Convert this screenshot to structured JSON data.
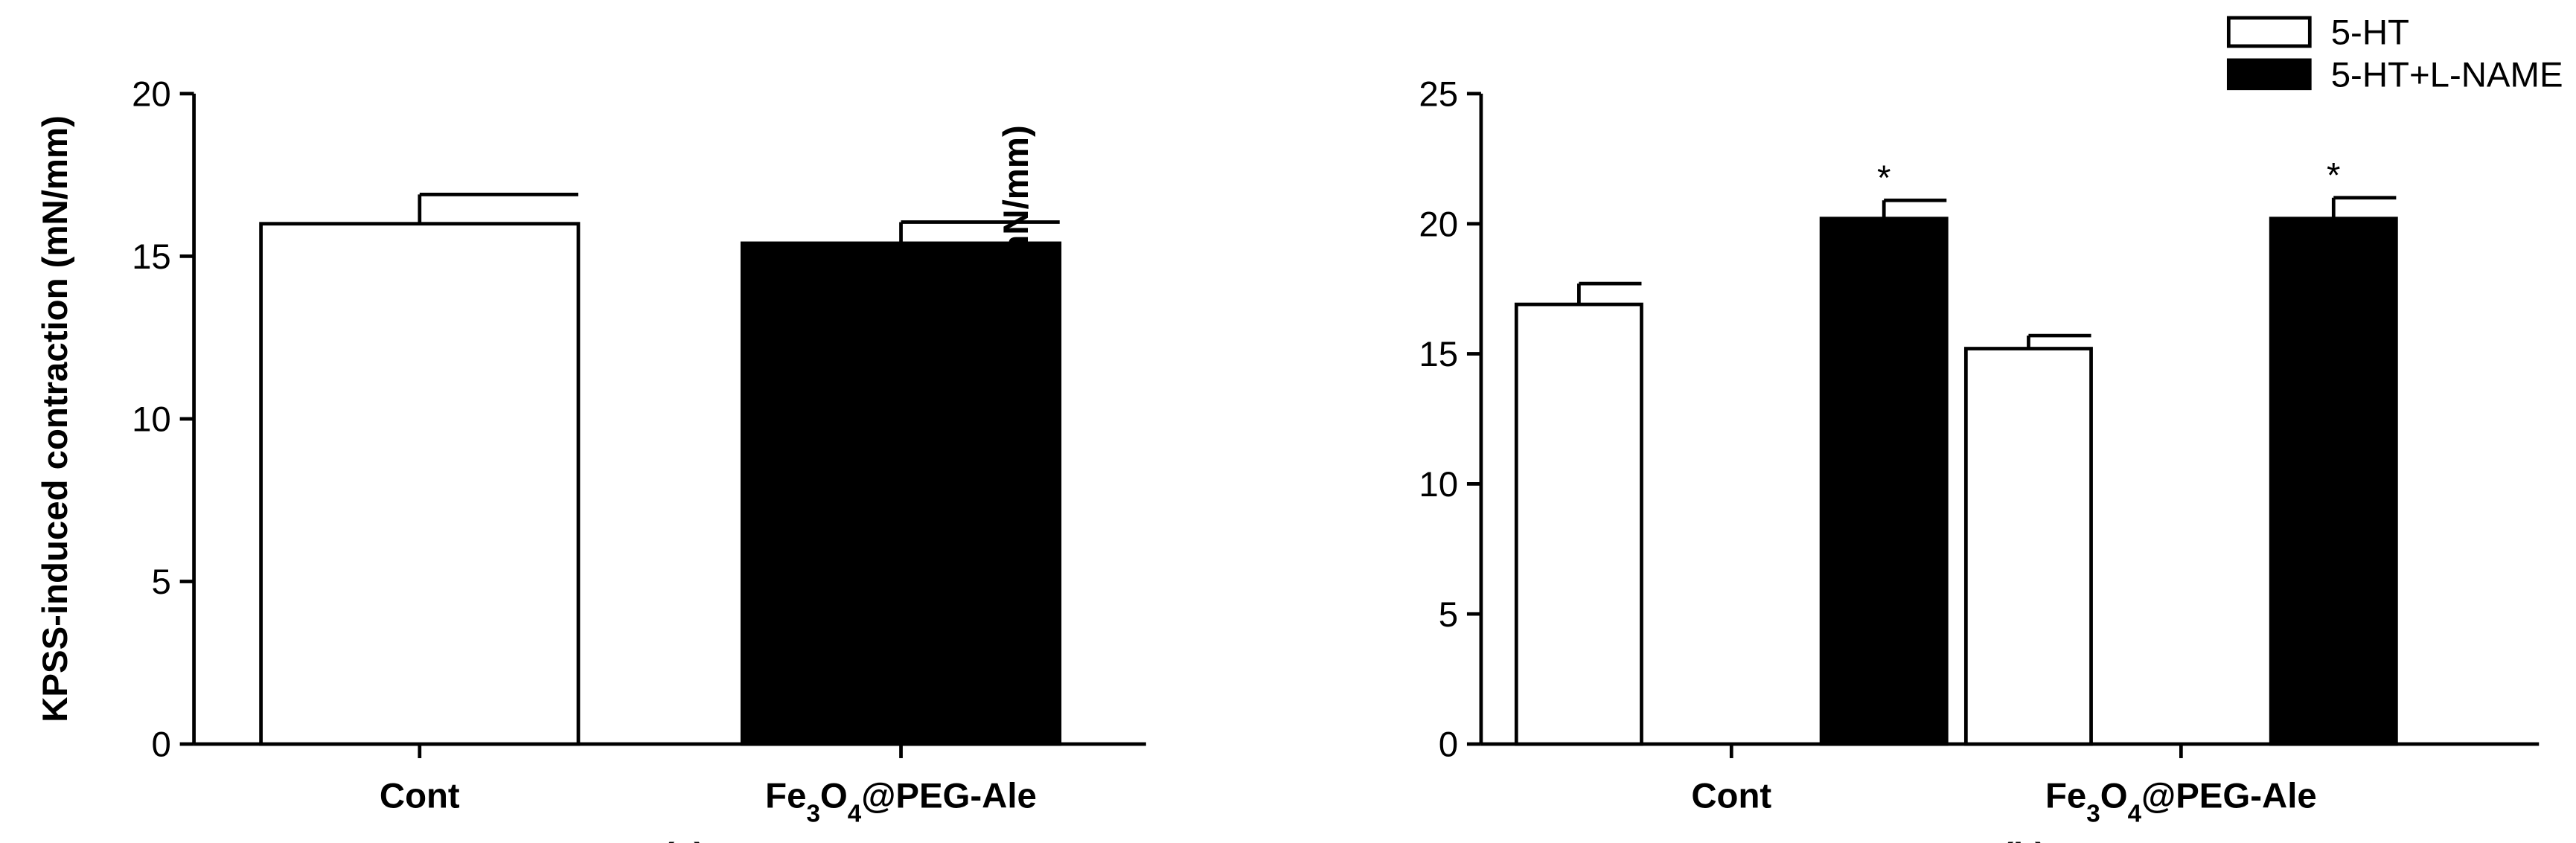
{
  "chart_data": [
    {
      "type": "bar",
      "ylabel": "KPSS-induced contraction (mN/mm)",
      "caption": "(a)",
      "categories": [
        "Cont",
        "Fe3O4@PEG-Ale"
      ],
      "series": [
        {
          "color": "#ffffff",
          "values": [
            16.0,
            15.4
          ],
          "errors": [
            0.9,
            0.65
          ]
        }
      ],
      "bar_colors": [
        "#ffffff",
        "#000000"
      ],
      "ylim": [
        0,
        20
      ],
      "yticks": [
        0,
        5,
        10,
        15,
        20
      ]
    },
    {
      "type": "bar",
      "ylabel": "5-HT-induced contraction (mN/mm)",
      "caption": "(b)",
      "categories": [
        "Cont",
        "Fe3O4@PEG-Ale"
      ],
      "series": [
        {
          "name": "5-HT",
          "color": "#ffffff",
          "values": [
            16.9,
            15.2
          ],
          "errors": [
            0.8,
            0.5
          ]
        },
        {
          "name": "5-HT+L-NAME",
          "color": "#000000",
          "values": [
            20.2,
            20.2
          ],
          "errors": [
            0.7,
            0.8
          ],
          "annotations": [
            "*",
            "*"
          ]
        }
      ],
      "ylim": [
        0,
        25
      ],
      "yticks": [
        0,
        5,
        10,
        15,
        20,
        25
      ],
      "legend": "top-right"
    }
  ]
}
